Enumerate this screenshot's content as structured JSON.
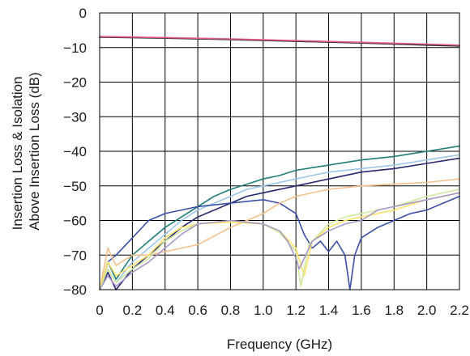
{
  "chart_data": {
    "type": "line",
    "title": "",
    "xlabel": "Frequency (GHz)",
    "ylabel_lines": [
      "Insertion Loss & Isolation",
      "Above Insertion Loss (dB)"
    ],
    "xlim": [
      0,
      2.2
    ],
    "ylim": [
      -80,
      0
    ],
    "x_ticks": [
      0,
      0.2,
      0.4,
      0.6,
      0.8,
      1.0,
      1.2,
      1.4,
      1.6,
      1.8,
      2.0,
      2.2
    ],
    "x_tick_labels": [
      "0",
      "0.2",
      "0.4",
      "0.6",
      "0.8",
      "1.0",
      "1.2",
      "1.4",
      "1.6",
      "1.8",
      "2.0",
      "2.2"
    ],
    "y_ticks": [
      0,
      -10,
      -20,
      -30,
      -40,
      -50,
      -60,
      -70,
      -80
    ],
    "y_tick_labels": [
      "0",
      "−10",
      "−20",
      "−30",
      "−40",
      "−50",
      "−60",
      "−70",
      "−80"
    ],
    "grid": true,
    "legend": "none",
    "series": [
      {
        "color": "#2e2e2e",
        "points": [
          [
            0,
            -7
          ],
          [
            0.4,
            -7.3
          ],
          [
            0.8,
            -7.7
          ],
          [
            1.2,
            -8.2
          ],
          [
            1.6,
            -8.7
          ],
          [
            2.0,
            -9.3
          ],
          [
            2.2,
            -9.6
          ]
        ]
      },
      {
        "color": "#e85a8c",
        "points": [
          [
            0,
            -6.8
          ],
          [
            0.4,
            -7.1
          ],
          [
            0.8,
            -7.5
          ],
          [
            1.2,
            -8.0
          ],
          [
            1.6,
            -8.5
          ],
          [
            2.0,
            -9.0
          ],
          [
            2.2,
            -9.3
          ]
        ]
      },
      {
        "color": "#1f7d7a",
        "points": [
          [
            0,
            -80
          ],
          [
            0.05,
            -72
          ],
          [
            0.1,
            -77
          ],
          [
            0.2,
            -70
          ],
          [
            0.3,
            -66
          ],
          [
            0.4,
            -62
          ],
          [
            0.5,
            -59
          ],
          [
            0.6,
            -56
          ],
          [
            0.7,
            -53
          ],
          [
            0.8,
            -51
          ],
          [
            0.9,
            -49.5
          ],
          [
            1.0,
            -48
          ],
          [
            1.1,
            -47
          ],
          [
            1.2,
            -45.5
          ],
          [
            1.4,
            -44
          ],
          [
            1.6,
            -42.5
          ],
          [
            1.8,
            -41.5
          ],
          [
            2.0,
            -40
          ],
          [
            2.2,
            -38.5
          ]
        ]
      },
      {
        "color": "#9cc6e8",
        "points": [
          [
            0,
            -80
          ],
          [
            0.05,
            -74
          ],
          [
            0.1,
            -78
          ],
          [
            0.2,
            -72
          ],
          [
            0.3,
            -68
          ],
          [
            0.4,
            -64
          ],
          [
            0.5,
            -60
          ],
          [
            0.6,
            -57
          ],
          [
            0.7,
            -55
          ],
          [
            0.8,
            -53
          ],
          [
            0.9,
            -51
          ],
          [
            1.0,
            -50
          ],
          [
            1.2,
            -48
          ],
          [
            1.4,
            -46
          ],
          [
            1.6,
            -45
          ],
          [
            1.8,
            -44
          ],
          [
            2.0,
            -42.5
          ],
          [
            2.2,
            -41
          ]
        ]
      },
      {
        "color": "#26276e",
        "points": [
          [
            0,
            -80
          ],
          [
            0.05,
            -75
          ],
          [
            0.1,
            -80
          ],
          [
            0.2,
            -74
          ],
          [
            0.3,
            -70
          ],
          [
            0.4,
            -66
          ],
          [
            0.5,
            -62
          ],
          [
            0.6,
            -59
          ],
          [
            0.7,
            -57
          ],
          [
            0.8,
            -55
          ],
          [
            0.9,
            -53
          ],
          [
            1.0,
            -52
          ],
          [
            1.2,
            -50
          ],
          [
            1.4,
            -48
          ],
          [
            1.6,
            -46
          ],
          [
            1.8,
            -45
          ],
          [
            2.0,
            -43.5
          ],
          [
            2.2,
            -42
          ]
        ]
      },
      {
        "color": "#3a4fa8",
        "points": [
          [
            0,
            -80
          ],
          [
            0.05,
            -72
          ],
          [
            0.1,
            -70
          ],
          [
            0.2,
            -65
          ],
          [
            0.3,
            -60
          ],
          [
            0.4,
            -58
          ],
          [
            0.6,
            -56
          ],
          [
            0.8,
            -55
          ],
          [
            1.0,
            -54
          ],
          [
            1.1,
            -55
          ],
          [
            1.2,
            -58
          ],
          [
            1.25,
            -64
          ],
          [
            1.3,
            -68
          ],
          [
            1.35,
            -66
          ],
          [
            1.4,
            -69
          ],
          [
            1.45,
            -66
          ],
          [
            1.5,
            -70
          ],
          [
            1.53,
            -80
          ],
          [
            1.56,
            -70
          ],
          [
            1.6,
            -65
          ],
          [
            1.7,
            -62
          ],
          [
            1.8,
            -60
          ],
          [
            1.9,
            -58
          ],
          [
            2.0,
            -57
          ],
          [
            2.1,
            -55
          ],
          [
            2.2,
            -53
          ]
        ]
      },
      {
        "color": "#f6c08c",
        "points": [
          [
            0,
            -80
          ],
          [
            0.05,
            -68
          ],
          [
            0.1,
            -73
          ],
          [
            0.2,
            -70
          ],
          [
            0.3,
            -70
          ],
          [
            0.4,
            -69
          ],
          [
            0.6,
            -67
          ],
          [
            0.8,
            -62
          ],
          [
            1.0,
            -58
          ],
          [
            1.1,
            -55
          ],
          [
            1.2,
            -53
          ],
          [
            1.4,
            -51
          ],
          [
            1.6,
            -50
          ],
          [
            1.8,
            -49.5
          ],
          [
            2.0,
            -49
          ],
          [
            2.2,
            -48
          ]
        ]
      },
      {
        "color": "#ffe26a",
        "points": [
          [
            0,
            -80
          ],
          [
            0.05,
            -72
          ],
          [
            0.1,
            -76
          ],
          [
            0.2,
            -73
          ],
          [
            0.3,
            -70
          ],
          [
            0.4,
            -65
          ],
          [
            0.5,
            -62
          ],
          [
            0.6,
            -61
          ],
          [
            0.8,
            -60.5
          ],
          [
            1.0,
            -61
          ],
          [
            1.1,
            -63
          ],
          [
            1.2,
            -68
          ],
          [
            1.25,
            -76
          ],
          [
            1.3,
            -66
          ],
          [
            1.4,
            -62
          ],
          [
            1.5,
            -60
          ],
          [
            1.6,
            -59
          ],
          [
            1.8,
            -57
          ],
          [
            2.0,
            -54
          ],
          [
            2.2,
            -52
          ]
        ]
      },
      {
        "color": "#cfe8a0",
        "points": [
          [
            0,
            -80
          ],
          [
            0.05,
            -74
          ],
          [
            0.1,
            -78
          ],
          [
            0.2,
            -74
          ],
          [
            0.3,
            -71
          ],
          [
            0.4,
            -66
          ],
          [
            0.5,
            -63
          ],
          [
            0.6,
            -61
          ],
          [
            0.8,
            -60
          ],
          [
            1.0,
            -61
          ],
          [
            1.1,
            -63.5
          ],
          [
            1.2,
            -69
          ],
          [
            1.23,
            -79
          ],
          [
            1.28,
            -67
          ],
          [
            1.4,
            -61
          ],
          [
            1.5,
            -59
          ],
          [
            1.6,
            -58
          ],
          [
            1.8,
            -56
          ],
          [
            2.0,
            -53
          ],
          [
            2.2,
            -51
          ]
        ]
      },
      {
        "color": "#a898c8",
        "points": [
          [
            0,
            -80
          ],
          [
            0.05,
            -76
          ],
          [
            0.1,
            -79
          ],
          [
            0.2,
            -75
          ],
          [
            0.3,
            -72
          ],
          [
            0.4,
            -68
          ],
          [
            0.5,
            -64
          ],
          [
            0.6,
            -61
          ],
          [
            0.8,
            -60
          ],
          [
            1.0,
            -61
          ],
          [
            1.1,
            -63
          ],
          [
            1.15,
            -66
          ],
          [
            1.2,
            -71
          ],
          [
            1.22,
            -74
          ],
          [
            1.26,
            -70
          ],
          [
            1.3,
            -66
          ],
          [
            1.4,
            -63
          ],
          [
            1.5,
            -61
          ],
          [
            1.6,
            -60
          ],
          [
            1.7,
            -57
          ],
          [
            1.8,
            -56
          ],
          [
            2.0,
            -54
          ],
          [
            2.2,
            -52
          ]
        ]
      }
    ]
  }
}
